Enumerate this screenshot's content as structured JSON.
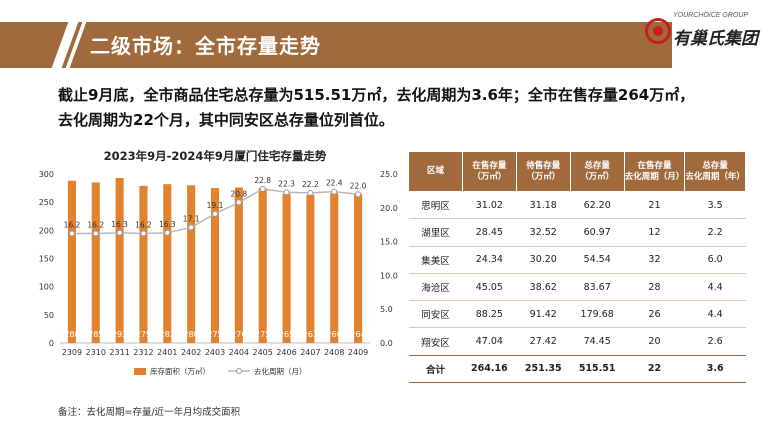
{
  "header": {
    "title": "二级市场：全市存量走势"
  },
  "logo": {
    "en": "YOURCHOICE GROUP",
    "cn": "有巢氏集团"
  },
  "summary": {
    "line1": "截止9月底，全市商品住宅总存量为515.51万㎡，去化周期为3.6年；全市在售存量264万㎡，",
    "line2": "去化周期为22个月，其中同安区总存量位列首位。"
  },
  "chart_data": {
    "type": "bar+line",
    "title": "2023年9月-2024年9月厦门住宅存量走势",
    "categories": [
      "2309",
      "2310",
      "2311",
      "2312",
      "2401",
      "2402",
      "2403",
      "2404",
      "2405",
      "2406",
      "2407",
      "2408",
      "2409"
    ],
    "series": [
      {
        "name": "库存面积（万㎡）",
        "type": "bar",
        "axis": "left",
        "color": "#e3822e",
        "values": [
          288,
          285,
          293,
          279,
          282,
          280,
          275,
          276,
          275,
          265,
          263,
          266,
          264
        ]
      },
      {
        "name": "去化周期（月）",
        "type": "line",
        "axis": "right",
        "color": "#b8b8b8",
        "values": [
          16.2,
          16.2,
          16.3,
          16.2,
          16.3,
          17.1,
          19.1,
          20.8,
          22.8,
          22.3,
          22.2,
          22.4,
          22.0
        ]
      }
    ],
    "y_left": {
      "min": 0,
      "max": 300,
      "ticks": [
        "0",
        "50",
        "100",
        "150",
        "200",
        "250",
        "300"
      ]
    },
    "y_right": {
      "min": 0,
      "max": 25,
      "ticks": [
        "0.0",
        "5.0",
        "10.0",
        "15.0",
        "20.0",
        "25.0"
      ]
    },
    "legend": "bottom",
    "grid": false
  },
  "table": {
    "headers": [
      [
        "区域"
      ],
      [
        "在售存量",
        "（万㎡）"
      ],
      [
        "待售存量",
        "（万㎡）"
      ],
      [
        "总存量",
        "（万㎡）"
      ],
      [
        "在售存量",
        "去化周期（月）"
      ],
      [
        "总存量",
        "去化周期（年）"
      ]
    ],
    "rows": [
      [
        "思明区",
        "31.02",
        "31.18",
        "62.20",
        "21",
        "3.5"
      ],
      [
        "湖里区",
        "28.45",
        "32.52",
        "60.97",
        "12",
        "2.2"
      ],
      [
        "集美区",
        "24.34",
        "30.20",
        "54.54",
        "32",
        "6.0"
      ],
      [
        "海沧区",
        "45.05",
        "38.62",
        "83.67",
        "28",
        "4.4"
      ],
      [
        "同安区",
        "88.25",
        "91.42",
        "179.68",
        "26",
        "4.4"
      ],
      [
        "翔安区",
        "47.04",
        "27.42",
        "74.45",
        "20",
        "2.6"
      ]
    ],
    "total": [
      "合计",
      "264.16",
      "251.35",
      "515.51",
      "22",
      "3.6"
    ]
  },
  "footnote": "备注：去化周期=存量/近一年月均成交面积"
}
